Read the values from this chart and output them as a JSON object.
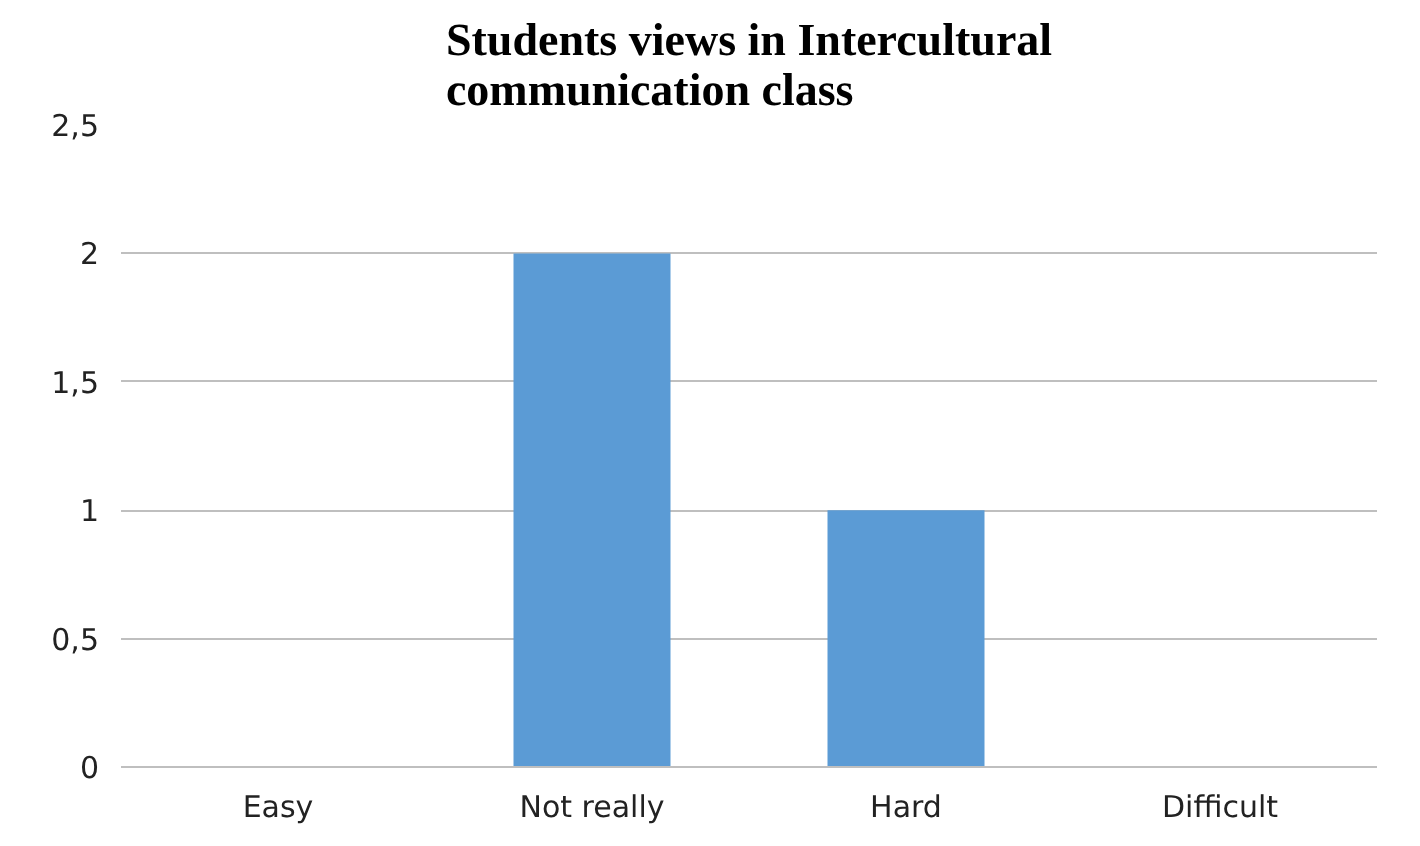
{
  "chart_data": {
    "type": "bar",
    "title": "Students views in Intercultural communication class",
    "categories": [
      "Easy",
      "Not really",
      "Hard",
      "Difficult"
    ],
    "values": [
      0,
      2,
      1,
      0
    ],
    "color": "#5b9bd5",
    "ylim": [
      0,
      2.5
    ],
    "yticks": [
      0,
      {
        "value": 0.5,
        "label": "0,5"
      },
      1,
      {
        "value": 1.5,
        "label": "1,5"
      },
      2,
      {
        "value": 2.5,
        "label": "2,5"
      }
    ],
    "grid": "y"
  }
}
